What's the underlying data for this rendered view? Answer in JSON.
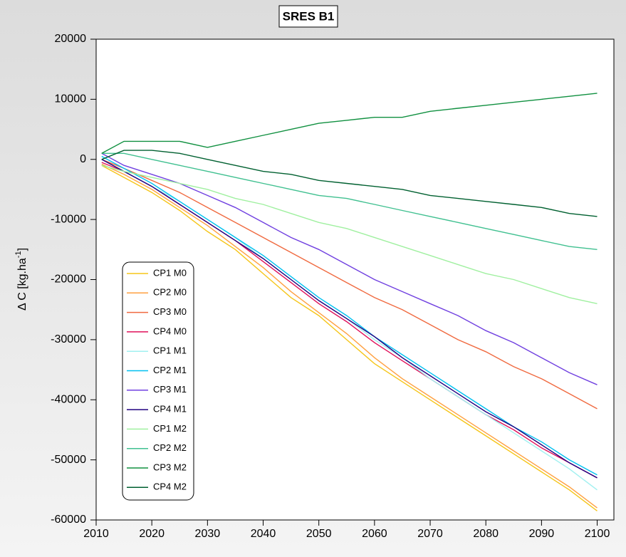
{
  "chart_data": {
    "type": "line",
    "title": "SRES B1",
    "ylabel": "Δ C [kg.ha",
    "ylabel_sup": "-1",
    "ylabel_end": "]",
    "x": [
      2011,
      2015,
      2020,
      2025,
      2030,
      2035,
      2040,
      2045,
      2050,
      2055,
      2060,
      2065,
      2070,
      2075,
      2080,
      2085,
      2090,
      2095,
      2100
    ],
    "xlim": [
      2010,
      2103
    ],
    "xticks": [
      2010,
      2020,
      2030,
      2040,
      2050,
      2060,
      2070,
      2080,
      2090,
      2100
    ],
    "ylim": [
      -60000,
      20000
    ],
    "yticks": [
      -60000,
      -50000,
      -40000,
      -30000,
      -20000,
      -10000,
      0,
      10000,
      20000
    ],
    "series": [
      {
        "name": "CP1 M0",
        "color": "#f5c518",
        "values": [
          -1000,
          -3000,
          -5500,
          -8500,
          -12000,
          -15000,
          -19000,
          -23000,
          -26000,
          -30000,
          -34000,
          -37000,
          -40000,
          -43000,
          -46000,
          -49000,
          -52000,
          -55000,
          -58500
        ]
      },
      {
        "name": "CP2 M0",
        "color": "#ffa040",
        "values": [
          -800,
          -2500,
          -5000,
          -8000,
          -11000,
          -14500,
          -18000,
          -22000,
          -25500,
          -29000,
          -33000,
          -36500,
          -39500,
          -42500,
          -45500,
          -48500,
          -51500,
          -54500,
          -58000
        ]
      },
      {
        "name": "CP3 M0",
        "color": "#f06a40",
        "values": [
          0,
          -1500,
          -3500,
          -5500,
          -8000,
          -10500,
          -13000,
          -15500,
          -18000,
          -20500,
          -23000,
          -25000,
          -27500,
          -30000,
          -32000,
          -34500,
          -36500,
          -39000,
          -41500
        ]
      },
      {
        "name": "CP4 M0",
        "color": "#e0105a",
        "values": [
          -500,
          -2000,
          -4500,
          -7500,
          -10500,
          -13500,
          -17000,
          -20500,
          -24000,
          -27000,
          -30500,
          -33500,
          -36500,
          -39500,
          -42500,
          -45000,
          -48000,
          -50500,
          -53000
        ]
      },
      {
        "name": "CP1 M1",
        "color": "#a0f0f0",
        "values": [
          0,
          -2000,
          -4500,
          -7000,
          -10000,
          -13000,
          -16500,
          -20000,
          -23500,
          -26500,
          -30000,
          -33000,
          -36500,
          -39500,
          -42500,
          -45500,
          -48500,
          -51500,
          -55000
        ]
      },
      {
        "name": "CP2 M1",
        "color": "#00c0f0",
        "values": [
          500,
          -1500,
          -4000,
          -7000,
          -10000,
          -13000,
          -16000,
          -19500,
          -23000,
          -26000,
          -29500,
          -32500,
          -35500,
          -38500,
          -41500,
          -44500,
          -47000,
          -50000,
          -52500
        ]
      },
      {
        "name": "CP3 M1",
        "color": "#7040e0",
        "values": [
          1000,
          -1000,
          -2500,
          -4000,
          -6000,
          -8000,
          -10500,
          -13000,
          -15000,
          -17500,
          -20000,
          -22000,
          -24000,
          -26000,
          -28500,
          -30500,
          -33000,
          -35500,
          -37500
        ]
      },
      {
        "name": "CP4 M1",
        "color": "#200080",
        "values": [
          0,
          -2000,
          -4500,
          -7500,
          -10500,
          -13500,
          -16500,
          -20000,
          -23500,
          -26500,
          -29500,
          -33000,
          -36000,
          -39000,
          -42000,
          -44500,
          -47500,
          -50500,
          -53000
        ]
      },
      {
        "name": "CP1 M2",
        "color": "#a0f0a0",
        "values": [
          -1000,
          -2000,
          -3000,
          -4000,
          -5000,
          -6500,
          -7500,
          -9000,
          -10500,
          -11500,
          -13000,
          -14500,
          -16000,
          -17500,
          -19000,
          -20000,
          -21500,
          -23000,
          -24000
        ]
      },
      {
        "name": "CP2 M2",
        "color": "#40c090",
        "values": [
          1000,
          1000,
          0,
          -1000,
          -2000,
          -3000,
          -4000,
          -5000,
          -6000,
          -6500,
          -7500,
          -8500,
          -9500,
          -10500,
          -11500,
          -12500,
          -13500,
          -14500,
          -15000
        ]
      },
      {
        "name": "CP3 M2",
        "color": "#109040",
        "values": [
          1000,
          3000,
          3000,
          3000,
          2000,
          3000,
          4000,
          5000,
          6000,
          6500,
          7000,
          7000,
          8000,
          8500,
          9000,
          9500,
          10000,
          10500,
          11000
        ]
      },
      {
        "name": "CP4 M2",
        "color": "#006030",
        "values": [
          0,
          1500,
          1500,
          1000,
          0,
          -1000,
          -2000,
          -2500,
          -3500,
          -4000,
          -4500,
          -5000,
          -6000,
          -6500,
          -7000,
          -7500,
          -8000,
          -9000,
          -9500
        ]
      }
    ]
  }
}
